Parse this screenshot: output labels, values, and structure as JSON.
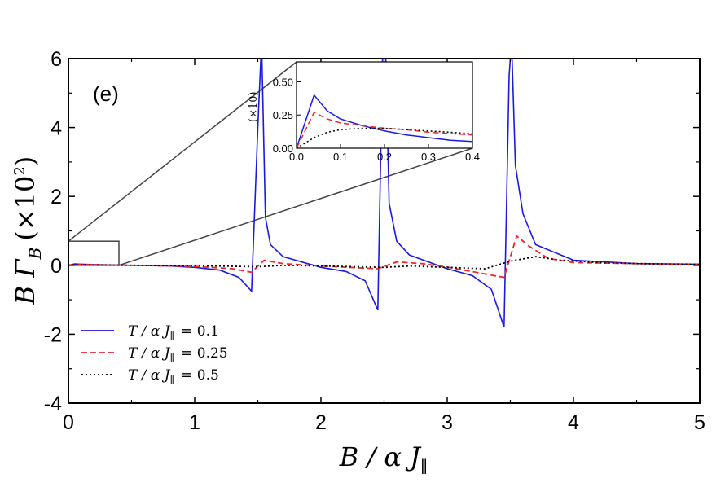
{
  "chart_data": {
    "type": "line",
    "panel_label": "(e)",
    "xlabel": "B / α J∥",
    "ylabel": "B Γ_B (×10²)",
    "ylabel_parts": {
      "main": "B Γ",
      "sub": "B",
      "factor": "(×10",
      "sup": "2",
      "close": ")"
    },
    "xlim": [
      0,
      5
    ],
    "ylim": [
      -4,
      6
    ],
    "xticks": [
      "0",
      "1",
      "2",
      "3",
      "4",
      "5"
    ],
    "yticks": [
      "-4",
      "-2",
      "0",
      "2",
      "4",
      "6"
    ],
    "series": [
      {
        "name": "T / α J∥ = 0.1",
        "color": "#1a1adc",
        "dash": "",
        "x": [
          0,
          0.05,
          0.2,
          0.5,
          0.8,
          1.0,
          1.2,
          1.35,
          1.45,
          1.5,
          1.53,
          1.56,
          1.6,
          1.7,
          2.0,
          2.2,
          2.35,
          2.45,
          2.49,
          2.51,
          2.54,
          2.6,
          2.7,
          3.0,
          3.2,
          3.35,
          3.45,
          3.49,
          3.51,
          3.54,
          3.6,
          3.7,
          4.0,
          4.5,
          5.0
        ],
        "y": [
          0,
          0.04,
          0.02,
          0.0,
          -0.02,
          -0.06,
          -0.14,
          -0.35,
          -0.75,
          4.0,
          6.5,
          1.4,
          0.6,
          0.25,
          -0.06,
          -0.18,
          -0.45,
          -1.3,
          6.5,
          6.5,
          1.8,
          0.7,
          0.3,
          -0.1,
          -0.3,
          -0.7,
          -1.8,
          5.5,
          6.5,
          2.9,
          1.5,
          0.6,
          0.15,
          0.05,
          0.03
        ]
      },
      {
        "name": "T / α J∥ = 0.25",
        "color": "#e8282d",
        "dash": "7,4",
        "x": [
          0,
          0.05,
          0.2,
          0.5,
          1.0,
          1.3,
          1.45,
          1.55,
          1.7,
          2.0,
          2.45,
          2.6,
          2.8,
          3.0,
          3.3,
          3.45,
          3.55,
          3.65,
          3.8,
          4.0,
          4.5,
          5.0
        ],
        "y": [
          0,
          0.03,
          0.02,
          0.0,
          -0.03,
          -0.1,
          -0.2,
          0.15,
          0.05,
          -0.02,
          -0.1,
          0.1,
          0.05,
          -0.05,
          -0.25,
          -0.35,
          0.85,
          0.55,
          0.2,
          0.08,
          0.05,
          0.03
        ]
      },
      {
        "name": "T / α J∥ = 0.5",
        "color": "#000000",
        "dash": "2,3",
        "x": [
          0,
          0.05,
          0.2,
          0.5,
          1.0,
          1.5,
          1.7,
          2.0,
          2.5,
          2.7,
          3.0,
          3.3,
          3.5,
          3.7,
          3.9,
          4.2,
          4.5,
          5.0
        ],
        "y": [
          0,
          0.015,
          0.01,
          0.0,
          -0.01,
          -0.04,
          0.0,
          -0.02,
          -0.06,
          -0.02,
          -0.06,
          -0.1,
          0.12,
          0.25,
          0.15,
          0.08,
          0.05,
          0.03
        ]
      }
    ],
    "legend": [
      "T / α J∥ = 0.1",
      "T / α J∥ = 0.25",
      "T / α J∥ = 0.5"
    ],
    "legend_parts": [
      {
        "lhs": "T / α J",
        "sub": "∥",
        "rhs": "= 0.1"
      },
      {
        "lhs": "T / α J",
        "sub": "∥",
        "rhs": "= 0.25"
      },
      {
        "lhs": "T / α J",
        "sub": "∥",
        "rhs": "= 0.5"
      }
    ],
    "zoom_box": {
      "x_range": [
        0,
        0.4
      ],
      "y_range": [
        0,
        0.7
      ]
    },
    "inset": {
      "xlim": [
        0,
        0.4
      ],
      "ylim": [
        0,
        0.65
      ],
      "xticks": [
        "0.0",
        "0.1",
        "0.2",
        "0.3",
        "0.4"
      ],
      "yticks": [
        "0.00",
        "0.25",
        "0.50"
      ],
      "ylabel": "(×10)",
      "series": [
        {
          "name": "T / α J∥ = 0.1",
          "x": [
            0,
            0.04,
            0.07,
            0.1,
            0.15,
            0.2,
            0.25,
            0.3,
            0.35,
            0.4
          ],
          "y": [
            0,
            0.4,
            0.28,
            0.22,
            0.17,
            0.13,
            0.1,
            0.08,
            0.06,
            0.05
          ]
        },
        {
          "name": "T / α J∥ = 0.25",
          "x": [
            0,
            0.04,
            0.07,
            0.1,
            0.15,
            0.2,
            0.25,
            0.3,
            0.35,
            0.4
          ],
          "y": [
            0,
            0.27,
            0.22,
            0.19,
            0.17,
            0.15,
            0.14,
            0.12,
            0.11,
            0.1
          ]
        },
        {
          "name": "T / α J∥ = 0.5",
          "x": [
            0,
            0.04,
            0.07,
            0.1,
            0.15,
            0.2,
            0.25,
            0.3,
            0.35,
            0.4
          ],
          "y": [
            0,
            0.08,
            0.12,
            0.14,
            0.15,
            0.15,
            0.14,
            0.13,
            0.12,
            0.11
          ]
        }
      ]
    }
  }
}
